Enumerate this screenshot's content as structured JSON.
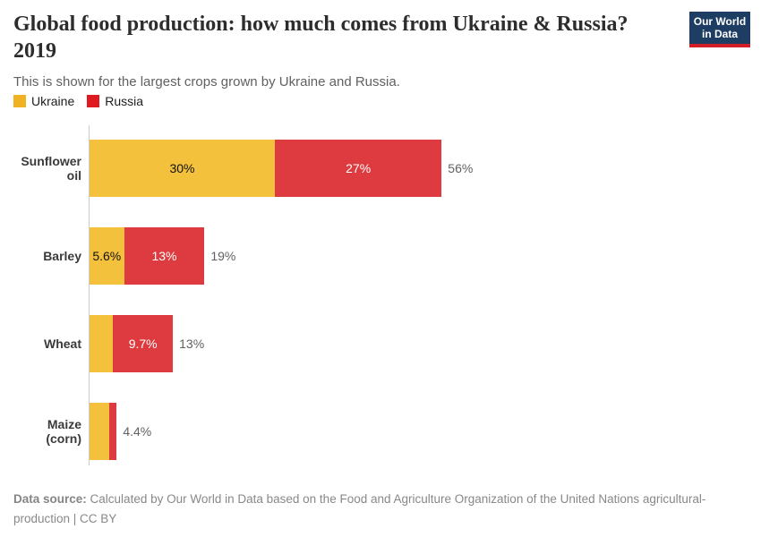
{
  "branding": {
    "logo_line1": "Our World",
    "logo_line2": "in Data",
    "logo_bg_color": "#1d3d63",
    "logo_stripe_color": "#d21e26"
  },
  "header": {
    "title_line1": "Global food production: how much comes from Ukraine & Russia?",
    "title_line2": "2019",
    "subtitle": "This is shown for the largest crops grown by Ukraine and Russia."
  },
  "legend": [
    {
      "label": "Ukraine",
      "color": "#f0b123"
    },
    {
      "label": "Russia",
      "color": "#df1a21"
    }
  ],
  "chart_data": {
    "type": "bar",
    "orientation": "horizontal",
    "stacked": true,
    "categories": [
      "Sunflower oil",
      "Barley",
      "Wheat",
      "Maize (corn)"
    ],
    "series": [
      {
        "name": "Ukraine",
        "color": "#f4c13c",
        "label_color": "#111111",
        "values": [
          30,
          5.6,
          3.8,
          3.2
        ],
        "labels": [
          "30%",
          "5.6%",
          null,
          null
        ]
      },
      {
        "name": "Russia",
        "color": "#dd3b3f",
        "label_color": "#ffffff",
        "values": [
          27,
          13,
          9.7,
          1.2
        ],
        "labels": [
          "27%",
          "13%",
          "9.7%",
          null
        ]
      }
    ],
    "totals": [
      "56%",
      "19%",
      "13%",
      "4.4%"
    ],
    "unit": "%",
    "xlim": [
      0,
      60
    ],
    "axis_color": "#cccccc",
    "legend_position": "top-left",
    "grid": false
  },
  "footer": {
    "source_label": "Data source:",
    "source_text": "Calculated by Our World in Data based on the Food and Agriculture Organization of the United Nations agricultural-production | CC BY"
  }
}
